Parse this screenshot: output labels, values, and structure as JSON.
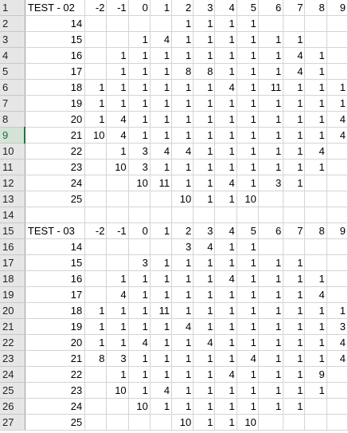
{
  "sheet": {
    "selected_row": 9,
    "rows": [
      {
        "n": "1",
        "cells": [
          "TEST - 02",
          "-2",
          "-1",
          "0",
          "1",
          "2",
          "3",
          "4",
          "5",
          "6",
          "7",
          "8",
          "9"
        ]
      },
      {
        "n": "2",
        "cells": [
          "14",
          "",
          "",
          "",
          "",
          "1",
          "1",
          "1",
          "1",
          "",
          "",
          "",
          ""
        ]
      },
      {
        "n": "3",
        "cells": [
          "15",
          "",
          "",
          "1",
          "4",
          "1",
          "1",
          "1",
          "1",
          "1",
          "1",
          "",
          ""
        ]
      },
      {
        "n": "4",
        "cells": [
          "16",
          "",
          "1",
          "1",
          "1",
          "1",
          "1",
          "1",
          "1",
          "1",
          "4",
          "1",
          ""
        ]
      },
      {
        "n": "5",
        "cells": [
          "17",
          "",
          "1",
          "1",
          "1",
          "8",
          "8",
          "1",
          "1",
          "1",
          "4",
          "1",
          ""
        ]
      },
      {
        "n": "6",
        "cells": [
          "18",
          "1",
          "1",
          "1",
          "1",
          "1",
          "1",
          "4",
          "1",
          "11",
          "1",
          "1",
          "1"
        ]
      },
      {
        "n": "7",
        "cells": [
          "19",
          "1",
          "1",
          "1",
          "1",
          "1",
          "1",
          "1",
          "1",
          "1",
          "1",
          "1",
          "1"
        ]
      },
      {
        "n": "8",
        "cells": [
          "20",
          "1",
          "4",
          "1",
          "1",
          "1",
          "1",
          "1",
          "1",
          "1",
          "1",
          "1",
          "4"
        ]
      },
      {
        "n": "9",
        "cells": [
          "21",
          "10",
          "4",
          "1",
          "1",
          "1",
          "1",
          "1",
          "1",
          "1",
          "1",
          "1",
          "4"
        ]
      },
      {
        "n": "10",
        "cells": [
          "22",
          "",
          "1",
          "3",
          "4",
          "4",
          "1",
          "1",
          "1",
          "1",
          "1",
          "4",
          ""
        ]
      },
      {
        "n": "11",
        "cells": [
          "23",
          "",
          "10",
          "3",
          "1",
          "1",
          "1",
          "1",
          "1",
          "1",
          "1",
          "1",
          ""
        ]
      },
      {
        "n": "12",
        "cells": [
          "24",
          "",
          "",
          "10",
          "11",
          "1",
          "1",
          "4",
          "1",
          "3",
          "1",
          "",
          ""
        ]
      },
      {
        "n": "13",
        "cells": [
          "25",
          "",
          "",
          "",
          "",
          "10",
          "1",
          "1",
          "10",
          "",
          "",
          "",
          ""
        ]
      },
      {
        "n": "14",
        "cells": [
          "",
          "",
          "",
          "",
          "",
          "",
          "",
          "",
          "",
          "",
          "",
          "",
          ""
        ]
      },
      {
        "n": "15",
        "cells": [
          "TEST - 03",
          "-2",
          "-1",
          "0",
          "1",
          "2",
          "3",
          "4",
          "5",
          "6",
          "7",
          "8",
          "9"
        ]
      },
      {
        "n": "16",
        "cells": [
          "14",
          "",
          "",
          "",
          "",
          "3",
          "4",
          "1",
          "1",
          "",
          "",
          "",
          ""
        ]
      },
      {
        "n": "17",
        "cells": [
          "15",
          "",
          "",
          "3",
          "1",
          "1",
          "1",
          "1",
          "1",
          "1",
          "1",
          "",
          ""
        ]
      },
      {
        "n": "18",
        "cells": [
          "16",
          "",
          "1",
          "1",
          "1",
          "1",
          "1",
          "4",
          "1",
          "1",
          "1",
          "1",
          ""
        ]
      },
      {
        "n": "19",
        "cells": [
          "17",
          "",
          "4",
          "1",
          "1",
          "1",
          "1",
          "1",
          "1",
          "1",
          "1",
          "4",
          ""
        ]
      },
      {
        "n": "20",
        "cells": [
          "18",
          "1",
          "1",
          "1",
          "11",
          "1",
          "1",
          "1",
          "1",
          "1",
          "1",
          "1",
          "1"
        ]
      },
      {
        "n": "21",
        "cells": [
          "19",
          "1",
          "1",
          "1",
          "1",
          "4",
          "1",
          "1",
          "1",
          "1",
          "1",
          "1",
          "3"
        ]
      },
      {
        "n": "22",
        "cells": [
          "20",
          "1",
          "1",
          "4",
          "1",
          "1",
          "4",
          "1",
          "1",
          "1",
          "1",
          "1",
          "4"
        ]
      },
      {
        "n": "23",
        "cells": [
          "21",
          "8",
          "3",
          "1",
          "1",
          "1",
          "1",
          "1",
          "4",
          "1",
          "1",
          "1",
          "4"
        ]
      },
      {
        "n": "24",
        "cells": [
          "22",
          "",
          "1",
          "1",
          "1",
          "1",
          "1",
          "4",
          "1",
          "1",
          "1",
          "9",
          ""
        ]
      },
      {
        "n": "25",
        "cells": [
          "23",
          "",
          "10",
          "1",
          "4",
          "1",
          "1",
          "1",
          "1",
          "1",
          "1",
          "1",
          ""
        ]
      },
      {
        "n": "26",
        "cells": [
          "24",
          "",
          "",
          "10",
          "1",
          "1",
          "1",
          "1",
          "1",
          "1",
          "1",
          "",
          ""
        ]
      },
      {
        "n": "27",
        "cells": [
          "25",
          "",
          "",
          "",
          "",
          "10",
          "1",
          "1",
          "10",
          "",
          "",
          "",
          ""
        ]
      }
    ]
  }
}
